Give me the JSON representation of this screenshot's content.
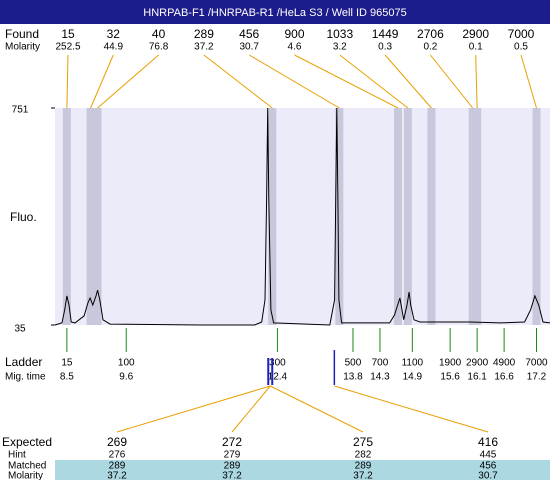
{
  "chart_data": {
    "type": "electropherogram",
    "title": "HNRPAB-F1 /HNRPAB-R1 /HeLa S3 / Well ID 965075",
    "found_label": "Found",
    "molarity_label": "Molarity",
    "found": {
      "sizes": [
        15,
        32,
        40,
        289,
        456,
        900,
        1033,
        1449,
        2706,
        2900,
        7000
      ],
      "molarity": [
        252.5,
        44.9,
        76.8,
        37.2,
        30.7,
        4.6,
        3.2,
        0.3,
        0.2,
        0.1,
        0.5
      ]
    },
    "ylabel": "Fluo.",
    "ylim": [
      35,
      751
    ],
    "yticks": [
      35,
      751
    ],
    "xlim": [
      8.28,
      17.45
    ],
    "trace": {
      "x": [
        8.28,
        8.41,
        8.46,
        8.5,
        8.54,
        8.58,
        8.65,
        8.82,
        8.89,
        8.93,
        8.98,
        9.04,
        9.07,
        9.11,
        9.17,
        9.3,
        10.97,
        11.98,
        12.11,
        12.17,
        12.2,
        12.22,
        12.24,
        12.28,
        12.33,
        13.37,
        13.46,
        13.48,
        13.5,
        13.52,
        13.54,
        13.59,
        14.48,
        14.57,
        14.67,
        14.74,
        14.8,
        14.84,
        14.87,
        14.93,
        15.04,
        15.23,
        15.97,
        16.52,
        16.98,
        17.09,
        17.17,
        17.24,
        17.32,
        17.45
      ],
      "values": [
        35,
        42,
        85,
        131,
        101,
        45,
        42,
        65,
        108,
        124,
        101,
        131,
        150,
        118,
        52,
        38,
        35,
        35,
        45,
        118,
        448,
        751,
        448,
        85,
        42,
        35,
        118,
        448,
        751,
        448,
        118,
        42,
        42,
        68,
        124,
        52,
        101,
        144,
        101,
        52,
        45,
        45,
        45,
        42,
        45,
        85,
        131,
        101,
        45,
        42
      ]
    },
    "ladder_label": "Ladder",
    "mig_time_label": "Mig. time",
    "ladder": {
      "sizes": [
        15,
        100,
        300,
        500,
        700,
        1100,
        1900,
        2900,
        4900,
        7000
      ],
      "mig_times": [
        8.5,
        9.6,
        12.4,
        13.8,
        14.3,
        14.9,
        15.6,
        16.1,
        16.6,
        17.2
      ]
    },
    "expected": {
      "row_labels": [
        "Expected",
        "Hint",
        "Matched",
        "Molarity"
      ],
      "columns": [
        [
          269,
          276,
          289,
          37.2
        ],
        [
          272,
          279,
          289,
          37.2
        ],
        [
          275,
          282,
          289,
          37.2
        ],
        [
          416,
          445,
          456,
          30.7
        ]
      ]
    },
    "colors": {
      "header": "#1c1c8c",
      "plot": "#ebebfa",
      "band": "#c8c8dc",
      "trace": "#000000",
      "peak_line": "#e8a000",
      "ladder_line": "#1a8a1a",
      "marker": "#2020c0",
      "matched_row": "#acd8e2"
    }
  }
}
